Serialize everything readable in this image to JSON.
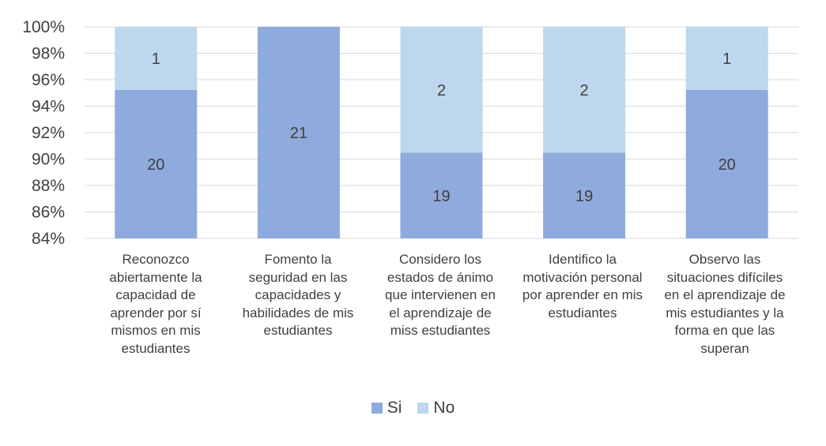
{
  "chart_data": {
    "type": "stacked-bar-100",
    "categories": [
      "Reconozco abiertamente la capacidad de aprender por sí mismos en mis estudiantes",
      "Fomento la seguridad en las capacidades y habilidades de mis estudiantes",
      "Considero los estados de ánimo que intervienen en el aprendizaje de miss estudiantes",
      "Identifico la motivación personal por aprender en mis estudiantes",
      "Observo las situaciones difíciles en el aprendizaje de mis estudiantes y la forma en que las superan"
    ],
    "series": [
      {
        "name": "Si",
        "values": [
          20,
          21,
          19,
          19,
          20
        ],
        "color": "#8FAADC"
      },
      {
        "name": "No",
        "values": [
          1,
          0,
          2,
          2,
          1
        ],
        "color": "#BDD7EE"
      }
    ],
    "ylim": [
      84,
      100
    ],
    "yticks": [
      "84%",
      "86%",
      "88%",
      "90%",
      "92%",
      "94%",
      "96%",
      "98%",
      "100%"
    ],
    "ytick_values": [
      84,
      86,
      88,
      90,
      92,
      94,
      96,
      98,
      100
    ],
    "grid": true,
    "legend": "bottom-center",
    "title": "",
    "xlabel": "",
    "ylabel": ""
  },
  "legend": {
    "si": "Si",
    "no": "No"
  },
  "labels": [
    "Reconozco\nabiertamente la\ncapacidad de\naprender por sí\nmismos en mis\nestudiantes",
    "Fomento la\nseguridad en las\ncapacidades y\nhabilidades de mis\nestudiantes",
    "Considero los\nestados de ánimo\nque intervienen en\nel aprendizaje de\nmiss estudiantes",
    "Identifico la\nmotivación personal\npor aprender en mis\nestudiantes",
    "Observo las\nsituaciones difíciles\nen el aprendizaje de\nmis estudiantes y la\nforma en que las\nsuperan"
  ]
}
